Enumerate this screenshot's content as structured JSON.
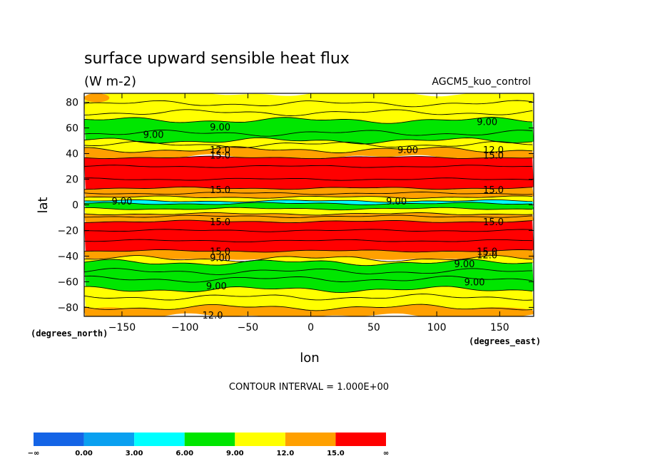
{
  "chart_data": {
    "type": "heatmap",
    "title": "surface upward sensible heat flux",
    "units_label": "(W m-2)",
    "experiment": "AGCM5_kuo_control",
    "xlabel": "lon",
    "ylabel": "lat",
    "x_units": "(degrees_east)",
    "y_units": "(degrees_north)",
    "xlim": [
      -180,
      177
    ],
    "ylim": [
      -87,
      87
    ],
    "x_ticks": [
      {
        "v": -150,
        "label": "−150"
      },
      {
        "v": -100,
        "label": "−100"
      },
      {
        "v": -50,
        "label": "−50"
      },
      {
        "v": 0,
        "label": "0"
      },
      {
        "v": 50,
        "label": "50"
      },
      {
        "v": 100,
        "label": "100"
      },
      {
        "v": 150,
        "label": "150"
      }
    ],
    "y_ticks": [
      {
        "v": 80,
        "label": "80"
      },
      {
        "v": 60,
        "label": "60"
      },
      {
        "v": 40,
        "label": "40"
      },
      {
        "v": 20,
        "label": "20"
      },
      {
        "v": 0,
        "label": "0"
      },
      {
        "v": -20,
        "label": "−20"
      },
      {
        "v": -40,
        "label": "−40"
      },
      {
        "v": -60,
        "label": "−60"
      },
      {
        "v": -80,
        "label": "−80"
      }
    ],
    "contour_interval_text": "CONTOUR INTERVAL = 1.000E+00",
    "colorbar": {
      "colors": [
        "#1464e6",
        "#0aa0f0",
        "#00ffff",
        "#00e600",
        "#ffff00",
        "#ffa000",
        "#ff0000"
      ],
      "labels": [
        "−∞",
        "0.00",
        "3.00",
        "6.00",
        "9.00",
        "12.0",
        "15.0",
        "∞"
      ]
    },
    "zonal_bands": [
      {
        "lat_from": 87,
        "lat_to": 79,
        "level": 4
      },
      {
        "lat_from": 79,
        "lat_to": 66,
        "level": 4
      },
      {
        "lat_from": 66,
        "lat_to": 50,
        "level": 3
      },
      {
        "lat_from": 50,
        "lat_to": 43,
        "level": 4
      },
      {
        "lat_from": 43,
        "lat_to": 37,
        "level": 5
      },
      {
        "lat_from": 37,
        "lat_to": 13,
        "level": 6
      },
      {
        "lat_from": 13,
        "lat_to": 6,
        "level": 5
      },
      {
        "lat_from": 6,
        "lat_to": 3,
        "level": 4
      },
      {
        "lat_from": 3,
        "lat_to": 1,
        "level": 2
      },
      {
        "lat_from": 1,
        "lat_to": -3,
        "level": 3
      },
      {
        "lat_from": -3,
        "lat_to": -7,
        "level": 4
      },
      {
        "lat_from": -7,
        "lat_to": -13,
        "level": 5
      },
      {
        "lat_from": -13,
        "lat_to": -36,
        "level": 6
      },
      {
        "lat_from": -36,
        "lat_to": -42,
        "level": 5
      },
      {
        "lat_from": -42,
        "lat_to": -45,
        "level": 4
      },
      {
        "lat_from": -45,
        "lat_to": -66,
        "level": 3
      },
      {
        "lat_from": -66,
        "lat_to": -80,
        "level": 4
      },
      {
        "lat_from": -80,
        "lat_to": -87,
        "level": 5
      }
    ],
    "patches": [
      {
        "lon0": -180,
        "lon1": -160,
        "lat0": 87,
        "lat1": 80,
        "level": 5
      },
      {
        "lon0": -60,
        "lon1": 40,
        "lat0": -50,
        "lat1": -64,
        "level": 3
      },
      {
        "lon0": -180,
        "lon1": -140,
        "lat0": -80,
        "lat1": -87,
        "level": 5
      },
      {
        "lon0": 120,
        "lon1": 177,
        "lat0": -80,
        "lat1": -87,
        "level": 5
      }
    ],
    "contour_labels": [
      {
        "lon": -72,
        "lat": 61,
        "text": "9.00"
      },
      {
        "lon": -125,
        "lat": 55,
        "text": "9.00"
      },
      {
        "lon": 140,
        "lat": 65,
        "text": "9.00"
      },
      {
        "lon": 77,
        "lat": 43,
        "text": "9.00"
      },
      {
        "lon": -72,
        "lat": 43,
        "text": "12.0"
      },
      {
        "lon": -72,
        "lat": 39,
        "text": "15.0"
      },
      {
        "lon": 145,
        "lat": 43,
        "text": "12.0"
      },
      {
        "lon": 145,
        "lat": 39,
        "text": "15.0"
      },
      {
        "lon": -150,
        "lat": 3,
        "text": "9.00"
      },
      {
        "lon": 68,
        "lat": 3,
        "text": "9.00"
      },
      {
        "lon": -72,
        "lat": 12,
        "text": "15.0"
      },
      {
        "lon": -72,
        "lat": -13,
        "text": "15.0"
      },
      {
        "lon": 145,
        "lat": 12,
        "text": "15.0"
      },
      {
        "lon": 145,
        "lat": -13,
        "text": "15.0"
      },
      {
        "lon": -72,
        "lat": -36,
        "text": "15.0"
      },
      {
        "lon": -72,
        "lat": -41,
        "text": "9.00"
      },
      {
        "lon": 140,
        "lat": -36,
        "text": "15.0"
      },
      {
        "lon": 140,
        "lat": -39,
        "text": "12.0"
      },
      {
        "lon": 122,
        "lat": -46,
        "text": "9.00"
      },
      {
        "lon": -75,
        "lat": -63,
        "text": "9.00"
      },
      {
        "lon": 130,
        "lat": -60,
        "text": "9.00"
      },
      {
        "lon": -78,
        "lat": -86,
        "text": "12.0"
      }
    ]
  }
}
